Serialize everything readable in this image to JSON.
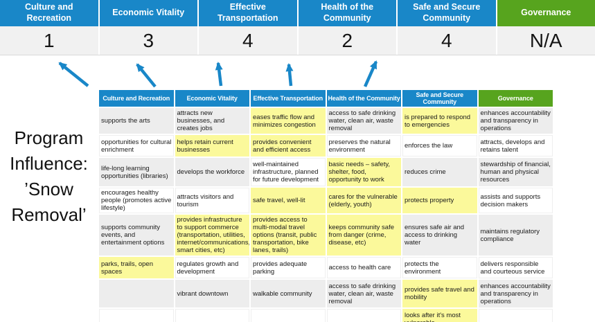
{
  "colors": {
    "blue": "#1987c8",
    "green": "#57a41e",
    "yellow_highlight": "#fbf99b",
    "gray_stripe": "#ededed",
    "score_row_bg": "#f1f1f1",
    "arrow_blue": "#1987c8"
  },
  "scores_banner": {
    "columns": [
      {
        "label": "Culture and Recreation",
        "score": "1",
        "color": "blue"
      },
      {
        "label": "Economic Vitality",
        "score": "3",
        "color": "blue"
      },
      {
        "label": "Effective Transportation",
        "score": "4",
        "color": "blue"
      },
      {
        "label": "Health of the Community",
        "score": "2",
        "color": "blue"
      },
      {
        "label": "Safe and Secure Community",
        "score": "4",
        "color": "blue"
      },
      {
        "label": "Governance",
        "score": "N/A",
        "color": "green"
      }
    ]
  },
  "program_label": {
    "lines": [
      "Program",
      "Influence:",
      "’Snow",
      "Removal’"
    ]
  },
  "matrix": {
    "headers": [
      {
        "label": "Culture and Recreation",
        "color": "blue"
      },
      {
        "label": "Economic Vitality",
        "color": "blue"
      },
      {
        "label": "Effective Transportation",
        "color": "blue"
      },
      {
        "label": "Health of the Community",
        "color": "blue"
      },
      {
        "label": "Safe and Secure Community",
        "color": "blue"
      },
      {
        "label": "Governance",
        "color": "green"
      }
    ],
    "rows": [
      [
        {
          "t": "supports the arts",
          "s": "g"
        },
        {
          "t": "attracts new businesses, and creates jobs",
          "s": "g"
        },
        {
          "t": "eases traffic flow and minimizes congestion",
          "s": "y"
        },
        {
          "t": "access to safe drinking water, clean air, waste removal",
          "s": "g"
        },
        {
          "t": "is prepared to respond to emergencies",
          "s": "y"
        },
        {
          "t": "enhances accountability and transparency in operations",
          "s": "g"
        }
      ],
      [
        {
          "t": "opportunities for cultural enrichment",
          "s": "w"
        },
        {
          "t": "helps retain current businesses",
          "s": "y"
        },
        {
          "t": "provides convenient and efficient access",
          "s": "y"
        },
        {
          "t": "preserves the natural environment",
          "s": "w"
        },
        {
          "t": "enforces the law",
          "s": "w"
        },
        {
          "t": "attracts, develops and retains talent",
          "s": "w"
        }
      ],
      [
        {
          "t": "life-long learning opportunities (libraries)",
          "s": "g"
        },
        {
          "t": "develops the workforce",
          "s": "g"
        },
        {
          "t": "well-maintained infrastructure, planned for future development",
          "s": "w"
        },
        {
          "t": "basic needs – safety, shelter, food, opportunity to work",
          "s": "y"
        },
        {
          "t": "reduces crime",
          "s": "g"
        },
        {
          "t": "stewardship of financial, human and physical resources",
          "s": "g"
        }
      ],
      [
        {
          "t": "encourages healthy people (promotes active lifestyle)",
          "s": "w"
        },
        {
          "t": "attracts visitors and tourism",
          "s": "w"
        },
        {
          "t": "safe travel, well-lit",
          "s": "y"
        },
        {
          "t": "cares for the vulnerable (elderly, youth)",
          "s": "y"
        },
        {
          "t": "protects property",
          "s": "y"
        },
        {
          "t": "assists and supports decision makers",
          "s": "w"
        }
      ],
      [
        {
          "t": "supports community events, and entertainment options",
          "s": "g"
        },
        {
          "t": "provides infrastructure to support commerce (transportation, utilities, internet/communications, smart cities, etc)",
          "s": "y"
        },
        {
          "t": "provides access to multi-modal travel options (transit, public transportation, bike lanes, trails)",
          "s": "y"
        },
        {
          "t": "keeps community safe from danger (crime, disease, etc)",
          "s": "y"
        },
        {
          "t": "ensures safe air and access to drinking water",
          "s": "g"
        },
        {
          "t": "maintains regulatory compliance",
          "s": "g"
        }
      ],
      [
        {
          "t": "parks, trails, open spaces",
          "s": "y"
        },
        {
          "t": "regulates growth and development",
          "s": "w"
        },
        {
          "t": "provides adequate parking",
          "s": "w"
        },
        {
          "t": "access to health care",
          "s": "w"
        },
        {
          "t": "protects the environment",
          "s": "w"
        },
        {
          "t": "delivers responsible and courteous service",
          "s": "w"
        }
      ],
      [
        {
          "t": "",
          "s": "g"
        },
        {
          "t": "vibrant downtown",
          "s": "g"
        },
        {
          "t": "walkable community",
          "s": "g"
        },
        {
          "t": "access to safe drinking water, clean air, waste removal",
          "s": "g"
        },
        {
          "t": "provides safe travel and mobility",
          "s": "y"
        },
        {
          "t": "enhances accountability and transparency in operations",
          "s": "g"
        }
      ],
      [
        {
          "t": "",
          "s": "w"
        },
        {
          "t": "",
          "s": "w"
        },
        {
          "t": "",
          "s": "w"
        },
        {
          "t": "",
          "s": "w"
        },
        {
          "t": "looks after it's most vulnerable",
          "s": "y"
        },
        {
          "t": "",
          "s": "w"
        }
      ]
    ]
  }
}
